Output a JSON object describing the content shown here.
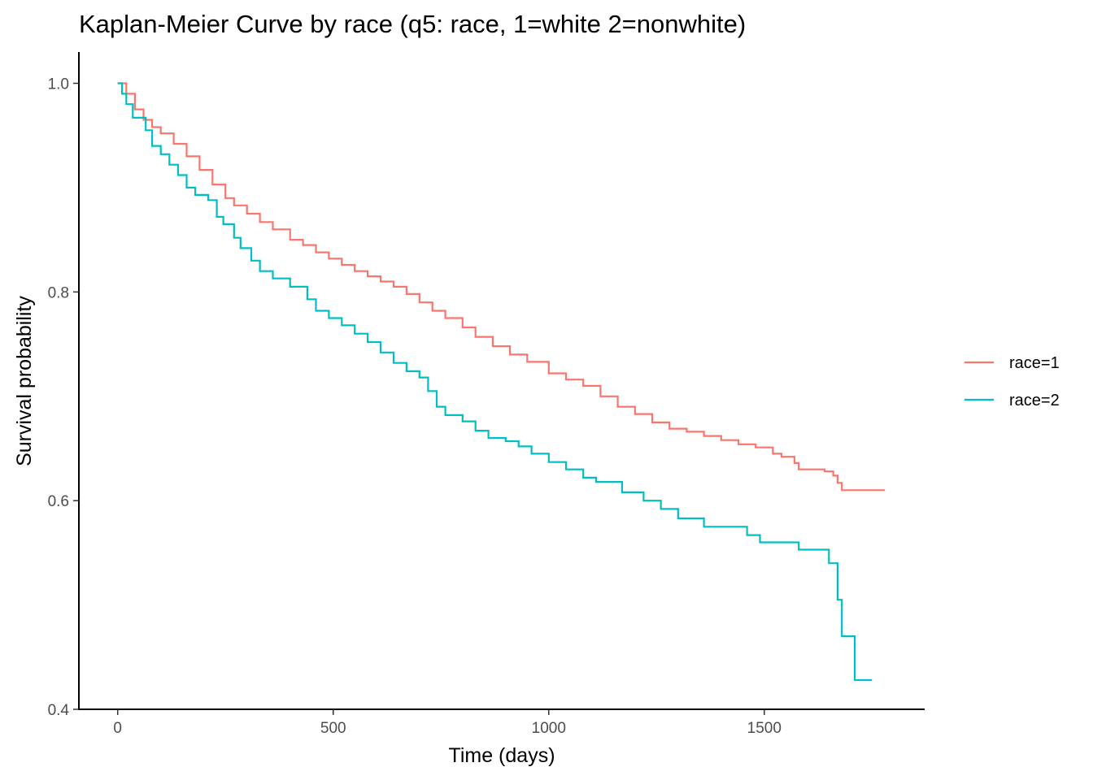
{
  "chart_data": {
    "type": "line",
    "step": true,
    "title": "Kaplan-Meier Curve by race (q5: race, 1=white 2=nonwhite)",
    "xlabel": "Time (days)",
    "ylabel": "Survival probability",
    "xlim": [
      -90,
      1872
    ],
    "ylim": [
      0.4,
      1.03
    ],
    "xticks": [
      0,
      500,
      1000,
      1500
    ],
    "xtick_labels": [
      "0",
      "500",
      "1000",
      "1500"
    ],
    "yticks": [
      0.4,
      0.6,
      0.8,
      1.0
    ],
    "ytick_labels": [
      "0.4",
      "0.6",
      "0.8",
      "1.0"
    ],
    "grid": false,
    "legend_position": "right",
    "series": [
      {
        "name": "race=1",
        "color": "#F8766D",
        "x": [
          0,
          20,
          40,
          60,
          80,
          100,
          130,
          160,
          190,
          220,
          250,
          270,
          300,
          330,
          360,
          400,
          430,
          460,
          490,
          520,
          550,
          580,
          610,
          640,
          670,
          700,
          730,
          760,
          800,
          830,
          870,
          910,
          950,
          1000,
          1040,
          1080,
          1120,
          1160,
          1200,
          1240,
          1280,
          1320,
          1360,
          1400,
          1440,
          1480,
          1520,
          1540,
          1570,
          1580,
          1640,
          1660,
          1670,
          1680,
          1780
        ],
        "y": [
          1.0,
          0.99,
          0.975,
          0.965,
          0.958,
          0.952,
          0.942,
          0.93,
          0.917,
          0.903,
          0.89,
          0.883,
          0.875,
          0.867,
          0.86,
          0.85,
          0.845,
          0.838,
          0.832,
          0.826,
          0.82,
          0.815,
          0.81,
          0.805,
          0.798,
          0.79,
          0.782,
          0.775,
          0.766,
          0.757,
          0.748,
          0.74,
          0.733,
          0.722,
          0.716,
          0.71,
          0.7,
          0.69,
          0.683,
          0.675,
          0.669,
          0.666,
          0.662,
          0.658,
          0.654,
          0.651,
          0.645,
          0.642,
          0.636,
          0.63,
          0.628,
          0.624,
          0.617,
          0.61,
          0.61
        ]
      },
      {
        "name": "race=2",
        "color": "#00BFC4",
        "x": [
          0,
          10,
          20,
          35,
          55,
          65,
          80,
          100,
          120,
          140,
          160,
          180,
          210,
          230,
          245,
          270,
          285,
          310,
          330,
          360,
          400,
          440,
          460,
          490,
          520,
          550,
          580,
          610,
          640,
          670,
          700,
          720,
          740,
          760,
          800,
          830,
          860,
          900,
          930,
          960,
          1000,
          1040,
          1080,
          1110,
          1170,
          1220,
          1260,
          1300,
          1360,
          1460,
          1490,
          1580,
          1650,
          1660,
          1670,
          1680,
          1710,
          1750
        ],
        "y": [
          1.0,
          0.99,
          0.98,
          0.967,
          0.967,
          0.955,
          0.94,
          0.932,
          0.922,
          0.912,
          0.9,
          0.893,
          0.888,
          0.872,
          0.865,
          0.852,
          0.842,
          0.83,
          0.82,
          0.813,
          0.805,
          0.793,
          0.782,
          0.775,
          0.768,
          0.76,
          0.752,
          0.742,
          0.732,
          0.724,
          0.718,
          0.705,
          0.69,
          0.682,
          0.676,
          0.667,
          0.66,
          0.657,
          0.652,
          0.645,
          0.637,
          0.63,
          0.622,
          0.618,
          0.608,
          0.6,
          0.592,
          0.583,
          0.575,
          0.567,
          0.56,
          0.553,
          0.54,
          0.54,
          0.505,
          0.47,
          0.428,
          0.428
        ]
      }
    ]
  }
}
